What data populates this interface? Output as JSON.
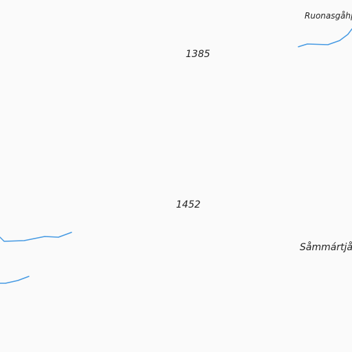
{
  "map": {
    "background": "#fafafa",
    "stream_color": "#4499e3",
    "elevations": [
      {
        "label": "1385"
      },
      {
        "label": "1452"
      }
    ],
    "places": [
      {
        "label": "Ruonasgåhpp"
      },
      {
        "label": "Såmmártjåh"
      }
    ],
    "streams": [
      {
        "name": "stream-ruonasgahpp"
      },
      {
        "name": "stream-west-upper"
      },
      {
        "name": "stream-west-lower"
      }
    ]
  }
}
